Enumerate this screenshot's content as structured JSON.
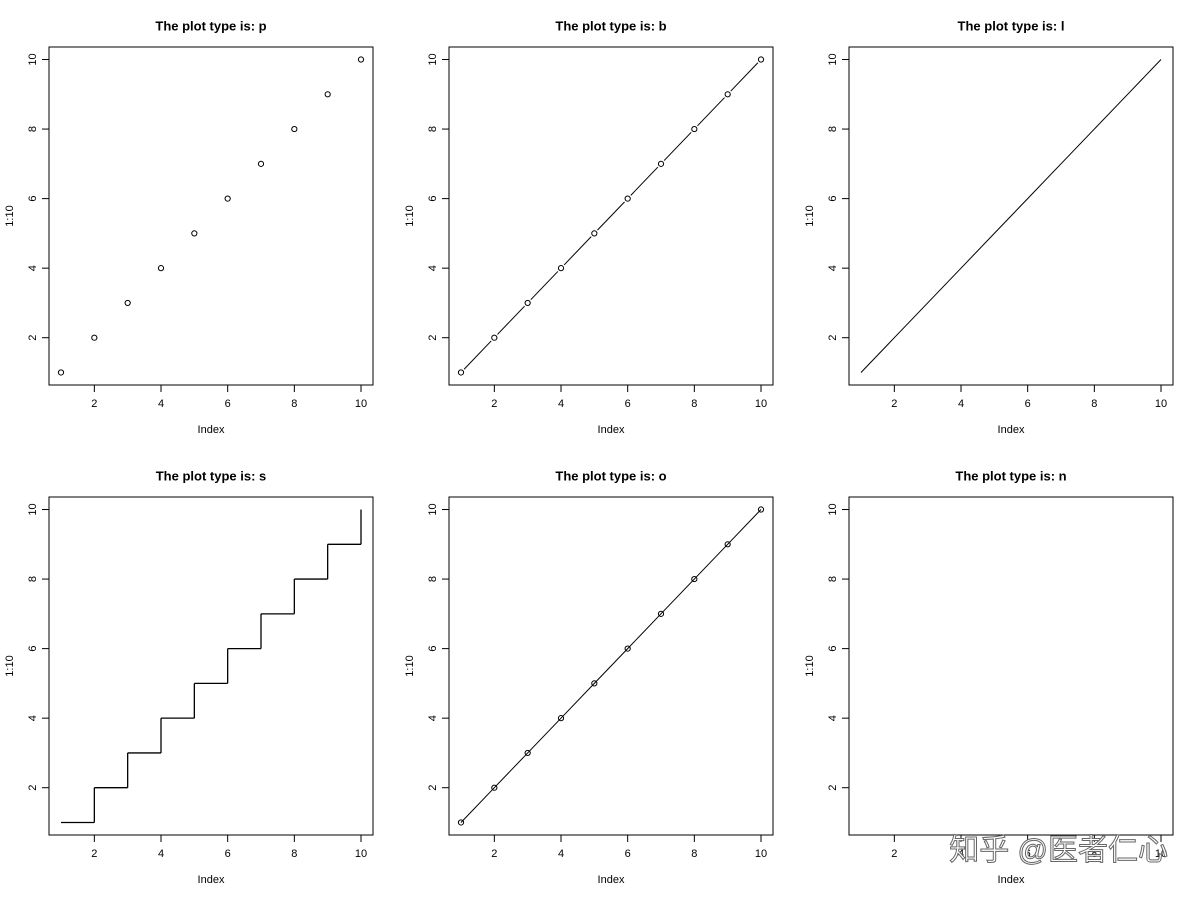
{
  "chart_data": [
    {
      "type": "scatter",
      "title": "The plot type is: p",
      "xlabel": "Index",
      "ylabel": "1:10",
      "x": [
        1,
        2,
        3,
        4,
        5,
        6,
        7,
        8,
        9,
        10
      ],
      "values": [
        1,
        2,
        3,
        4,
        5,
        6,
        7,
        8,
        9,
        10
      ],
      "color": "#000000",
      "xlim": [
        0.64,
        10.36
      ],
      "ylim": [
        0.64,
        10.36
      ],
      "xticks": [
        2,
        4,
        6,
        8,
        10
      ],
      "yticks": [
        2,
        4,
        6,
        8,
        10
      ]
    },
    {
      "type": "both",
      "title": "The plot type is: b",
      "xlabel": "Index",
      "ylabel": "1:10",
      "x": [
        1,
        2,
        3,
        4,
        5,
        6,
        7,
        8,
        9,
        10
      ],
      "values": [
        1,
        2,
        3,
        4,
        5,
        6,
        7,
        8,
        9,
        10
      ],
      "color": "#000000",
      "xlim": [
        0.64,
        10.36
      ],
      "ylim": [
        0.64,
        10.36
      ],
      "xticks": [
        2,
        4,
        6,
        8,
        10
      ],
      "yticks": [
        2,
        4,
        6,
        8,
        10
      ]
    },
    {
      "type": "line",
      "title": "The plot type is: l",
      "xlabel": "Index",
      "ylabel": "1:10",
      "x": [
        1,
        2,
        3,
        4,
        5,
        6,
        7,
        8,
        9,
        10
      ],
      "values": [
        1,
        2,
        3,
        4,
        5,
        6,
        7,
        8,
        9,
        10
      ],
      "color": "#000000",
      "xlim": [
        0.64,
        10.36
      ],
      "ylim": [
        0.64,
        10.36
      ],
      "xticks": [
        2,
        4,
        6,
        8,
        10
      ],
      "yticks": [
        2,
        4,
        6,
        8,
        10
      ]
    },
    {
      "type": "step",
      "title": "The plot type is: s",
      "xlabel": "Index",
      "ylabel": "1:10",
      "x": [
        1,
        2,
        3,
        4,
        5,
        6,
        7,
        8,
        9,
        10
      ],
      "values": [
        1,
        2,
        3,
        4,
        5,
        6,
        7,
        8,
        9,
        10
      ],
      "color": "#000000",
      "xlim": [
        0.64,
        10.36
      ],
      "ylim": [
        0.64,
        10.36
      ],
      "xticks": [
        2,
        4,
        6,
        8,
        10
      ],
      "yticks": [
        2,
        4,
        6,
        8,
        10
      ]
    },
    {
      "type": "overplot",
      "title": "The plot type is: o",
      "xlabel": "Index",
      "ylabel": "1:10",
      "x": [
        1,
        2,
        3,
        4,
        5,
        6,
        7,
        8,
        9,
        10
      ],
      "values": [
        1,
        2,
        3,
        4,
        5,
        6,
        7,
        8,
        9,
        10
      ],
      "color": "#000000",
      "xlim": [
        0.64,
        10.36
      ],
      "ylim": [
        0.64,
        10.36
      ],
      "xticks": [
        2,
        4,
        6,
        8,
        10
      ],
      "yticks": [
        2,
        4,
        6,
        8,
        10
      ]
    },
    {
      "type": "empty",
      "title": "The plot type is: n",
      "xlabel": "Index",
      "ylabel": "1:10",
      "xlim": [
        0.64,
        10.36
      ],
      "ylim": [
        0.64,
        10.36
      ],
      "xticks": [
        2,
        4,
        6,
        8,
        10
      ],
      "yticks": [
        2,
        4,
        6,
        8,
        10
      ]
    }
  ],
  "watermark": "知乎 @医者仁心"
}
